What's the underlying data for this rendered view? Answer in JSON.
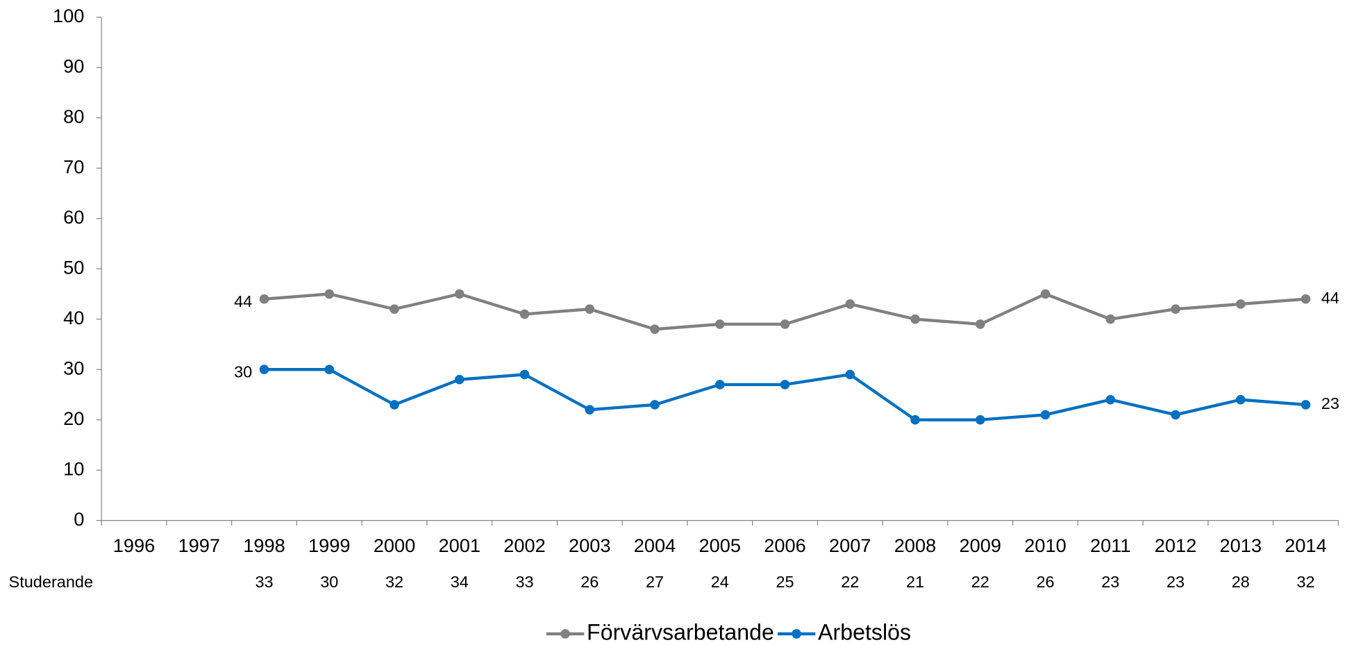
{
  "chart_data": {
    "type": "line",
    "categories": [
      "1996",
      "1997",
      "1998",
      "1999",
      "2000",
      "2001",
      "2002",
      "2003",
      "2004",
      "2005",
      "2006",
      "2007",
      "2008",
      "2009",
      "2010",
      "2011",
      "2012",
      "2013",
      "2014"
    ],
    "series": [
      {
        "name": "Förvärvsarbetande",
        "color": "#808080",
        "values": [
          null,
          null,
          44,
          45,
          42,
          45,
          41,
          42,
          38,
          39,
          39,
          43,
          40,
          39,
          45,
          40,
          42,
          43,
          44
        ]
      },
      {
        "name": "Arbetslös",
        "color": "#0070c0",
        "values": [
          null,
          null,
          30,
          30,
          23,
          28,
          29,
          22,
          23,
          27,
          27,
          29,
          20,
          20,
          21,
          24,
          21,
          24,
          23
        ]
      }
    ],
    "table_row": {
      "name": "Studerande",
      "values": [
        null,
        null,
        33,
        30,
        32,
        34,
        33,
        26,
        27,
        24,
        25,
        22,
        21,
        22,
        26,
        23,
        23,
        28,
        32
      ]
    },
    "ylim": [
      0,
      100
    ],
    "yticks": [
      0,
      10,
      20,
      30,
      40,
      50,
      60,
      70,
      80,
      90,
      100
    ],
    "data_labels": "first_last",
    "legend": "bottom"
  }
}
